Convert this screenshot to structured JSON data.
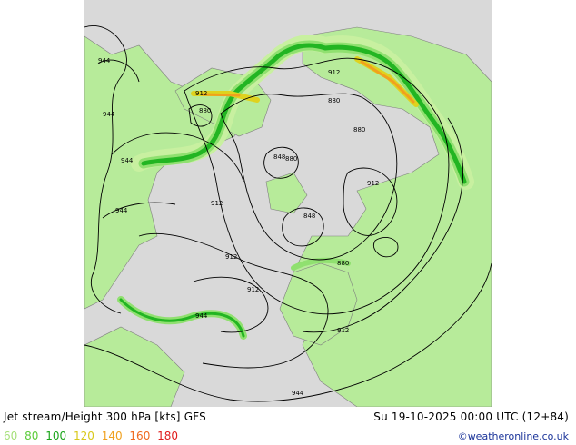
{
  "map": {
    "contour_labels": [
      {
        "id": "c1",
        "text": "944"
      },
      {
        "id": "c2",
        "text": "944"
      },
      {
        "id": "c3",
        "text": "944"
      },
      {
        "id": "c4",
        "text": "944"
      },
      {
        "id": "c5",
        "text": "912"
      },
      {
        "id": "c6",
        "text": "880"
      },
      {
        "id": "c7",
        "text": "912"
      },
      {
        "id": "c8",
        "text": "880"
      },
      {
        "id": "c9",
        "text": "880"
      },
      {
        "id": "c10",
        "text": "848"
      },
      {
        "id": "c11",
        "text": "880"
      },
      {
        "id": "c12",
        "text": "912"
      },
      {
        "id": "c13",
        "text": "912"
      },
      {
        "id": "c14",
        "text": "848"
      },
      {
        "id": "c15",
        "text": "880"
      },
      {
        "id": "c16",
        "text": "912"
      },
      {
        "id": "c17",
        "text": "912"
      },
      {
        "id": "c18",
        "text": "944"
      },
      {
        "id": "c19",
        "text": "912"
      },
      {
        "id": "c20",
        "text": "944"
      }
    ],
    "colors": {
      "background": "#d9d9d9",
      "land": "#b7eb9a",
      "jet_60": "#c8f0a0",
      "jet_80": "#90e070",
      "jet_100": "#22b522",
      "jet_120": "#dfd21e",
      "jet_140": "#f0a01e",
      "contour": "#000000",
      "coast": "#7f7f7f"
    }
  },
  "footer": {
    "title": "Jet stream/Height 300 hPa [kts] GFS",
    "valid": "Su 19-10-2025 00:00 UTC (12+84)",
    "credit": "©weatheronline.co.uk"
  },
  "legend": [
    {
      "label": "60",
      "color": "#a6e07a"
    },
    {
      "label": "80",
      "color": "#5ccc3a"
    },
    {
      "label": "100",
      "color": "#1aa51a"
    },
    {
      "label": "120",
      "color": "#d8c81a"
    },
    {
      "label": "140",
      "color": "#f0a01e"
    },
    {
      "label": "160",
      "color": "#f06a1e"
    },
    {
      "label": "180",
      "color": "#e01e1e"
    }
  ]
}
